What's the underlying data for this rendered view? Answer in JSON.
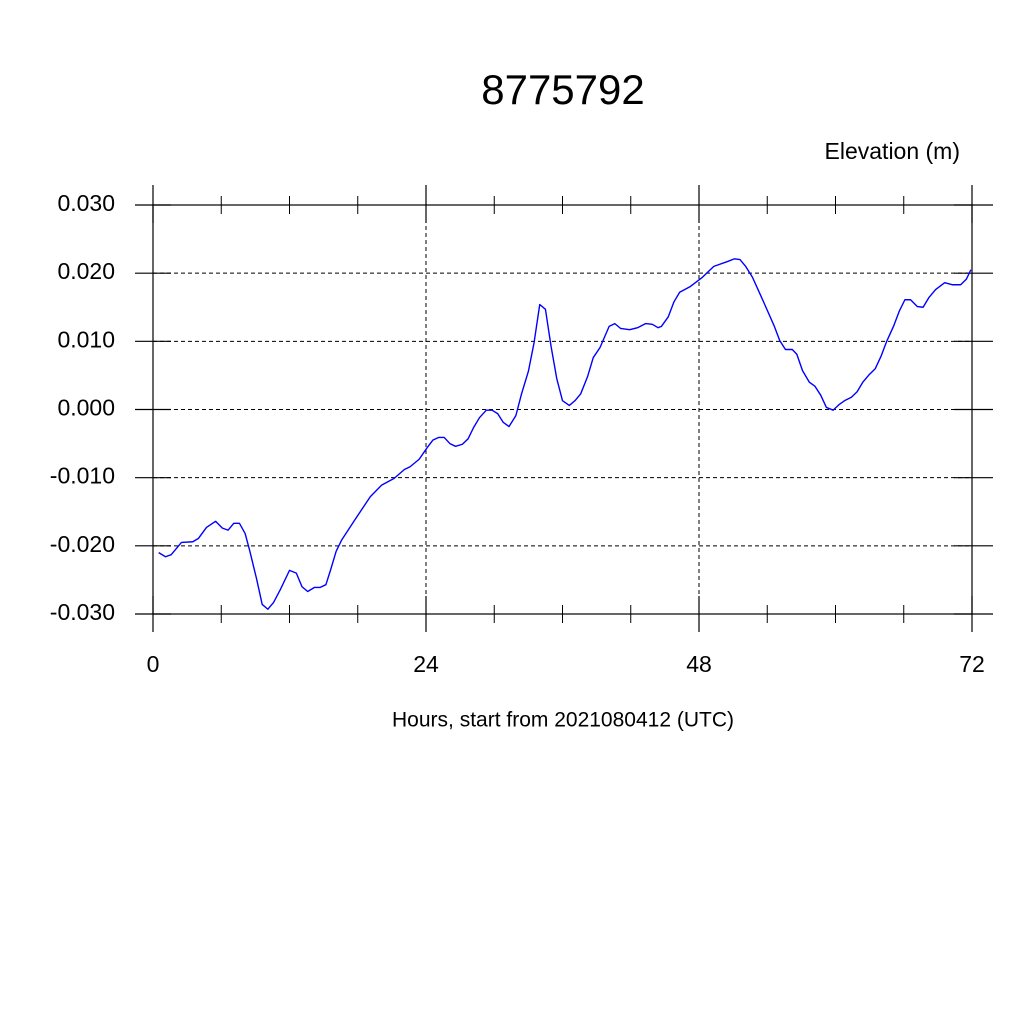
{
  "chart_data": {
    "type": "line",
    "title": "8775792",
    "y_label": "Elevation (m)",
    "x_label": "Hours, start from 2021080412 (UTC)",
    "series": [
      {
        "name": "Elevation",
        "color": "#0000ff",
        "x": [
          0.5,
          1.1,
          1.6,
          2.5,
          3.5,
          4.0,
          4.7,
          5.5,
          6.1,
          6.6,
          7.1,
          7.6,
          8.1,
          8.5,
          9.1,
          9.6,
          10.1,
          10.6,
          11.2,
          12.0,
          12.6,
          13.1,
          13.6,
          14.2,
          14.7,
          15.2,
          15.6,
          16.1,
          16.6,
          17.7,
          19.1,
          20.1,
          21.2,
          22.1,
          22.6,
          23.4,
          24.1,
          24.6,
          25.1,
          25.6,
          26.1,
          26.6,
          27.2,
          27.7,
          28.2,
          28.7,
          29.3,
          29.8,
          30.3,
          30.8,
          31.3,
          31.9,
          32.4,
          33.0,
          33.5,
          34.0,
          34.5,
          35.0,
          35.5,
          36.0,
          36.6,
          37.1,
          37.6,
          38.2,
          38.7,
          39.3,
          40.1,
          40.6,
          41.1,
          41.9,
          42.6,
          43.3,
          43.9,
          44.4,
          44.7,
          45.3,
          45.8,
          46.3,
          47.2,
          48.3,
          49.3,
          50.5,
          51.1,
          51.6,
          52.1,
          52.7,
          53.7,
          54.6,
          55.1,
          55.6,
          56.2,
          56.6,
          57.1,
          57.7,
          58.2,
          58.7,
          59.2,
          59.8,
          60.3,
          60.8,
          61.4,
          61.9,
          62.4,
          62.9,
          63.5,
          64.0,
          64.5,
          65.1,
          65.6,
          66.1,
          66.6,
          67.2,
          67.7,
          68.2,
          68.8,
          69.6,
          70.3,
          71.0,
          71.5,
          71.9
        ],
        "values": [
          -0.021,
          -0.0216,
          -0.0213,
          -0.0195,
          -0.0194,
          -0.0189,
          -0.0173,
          -0.0164,
          -0.0174,
          -0.0177,
          -0.0167,
          -0.0167,
          -0.0182,
          -0.0207,
          -0.0248,
          -0.0286,
          -0.0293,
          -0.0283,
          -0.0264,
          -0.0236,
          -0.024,
          -0.026,
          -0.0267,
          -0.0261,
          -0.0261,
          -0.0257,
          -0.0236,
          -0.0208,
          -0.0191,
          -0.0163,
          -0.0128,
          -0.0111,
          -0.0101,
          -0.0088,
          -0.0084,
          -0.0073,
          -0.0056,
          -0.0045,
          -0.0041,
          -0.0041,
          -0.005,
          -0.0054,
          -0.0051,
          -0.0043,
          -0.0026,
          -0.0012,
          -0.0001,
          -0.0001,
          -0.0006,
          -0.0019,
          -0.0025,
          -0.0009,
          0.0023,
          0.0056,
          0.0098,
          0.0154,
          0.0147,
          0.0092,
          0.0045,
          0.0013,
          0.0006,
          0.0013,
          0.0023,
          0.0048,
          0.0076,
          0.0091,
          0.0122,
          0.0126,
          0.0119,
          0.0117,
          0.012,
          0.0126,
          0.0125,
          0.012,
          0.0122,
          0.0136,
          0.0158,
          0.0172,
          0.018,
          0.0194,
          0.021,
          0.0217,
          0.0221,
          0.022,
          0.021,
          0.0194,
          0.0157,
          0.0123,
          0.0101,
          0.0088,
          0.0088,
          0.0081,
          0.0057,
          0.004,
          0.0034,
          0.0021,
          0.0003,
          -0.0001,
          0.0007,
          0.0013,
          0.0018,
          0.0026,
          0.004,
          0.005,
          0.006,
          0.0078,
          0.01,
          0.0122,
          0.0144,
          0.0161,
          0.0161,
          0.0151,
          0.015,
          0.0164,
          0.0176,
          0.0186,
          0.0183,
          0.0183,
          0.0191,
          0.0205
        ]
      }
    ],
    "xlim": [
      0,
      72
    ],
    "xticks": [
      0,
      24,
      48,
      72
    ],
    "xminorticks": [
      6,
      12,
      18,
      30,
      36,
      42,
      54,
      60,
      66
    ],
    "ylim": [
      -0.03,
      0.03
    ],
    "yticks": [
      {
        "value": -0.03,
        "label": "-0.030"
      },
      {
        "value": -0.02,
        "label": "-0.020"
      },
      {
        "value": -0.01,
        "label": "-0.010"
      },
      {
        "value": 0,
        "label": "0.000"
      },
      {
        "value": 0.01,
        "label": "0.010"
      },
      {
        "value": 0.02,
        "label": "0.020"
      },
      {
        "value": 0.03,
        "label": "0.030"
      }
    ],
    "grid": true
  }
}
